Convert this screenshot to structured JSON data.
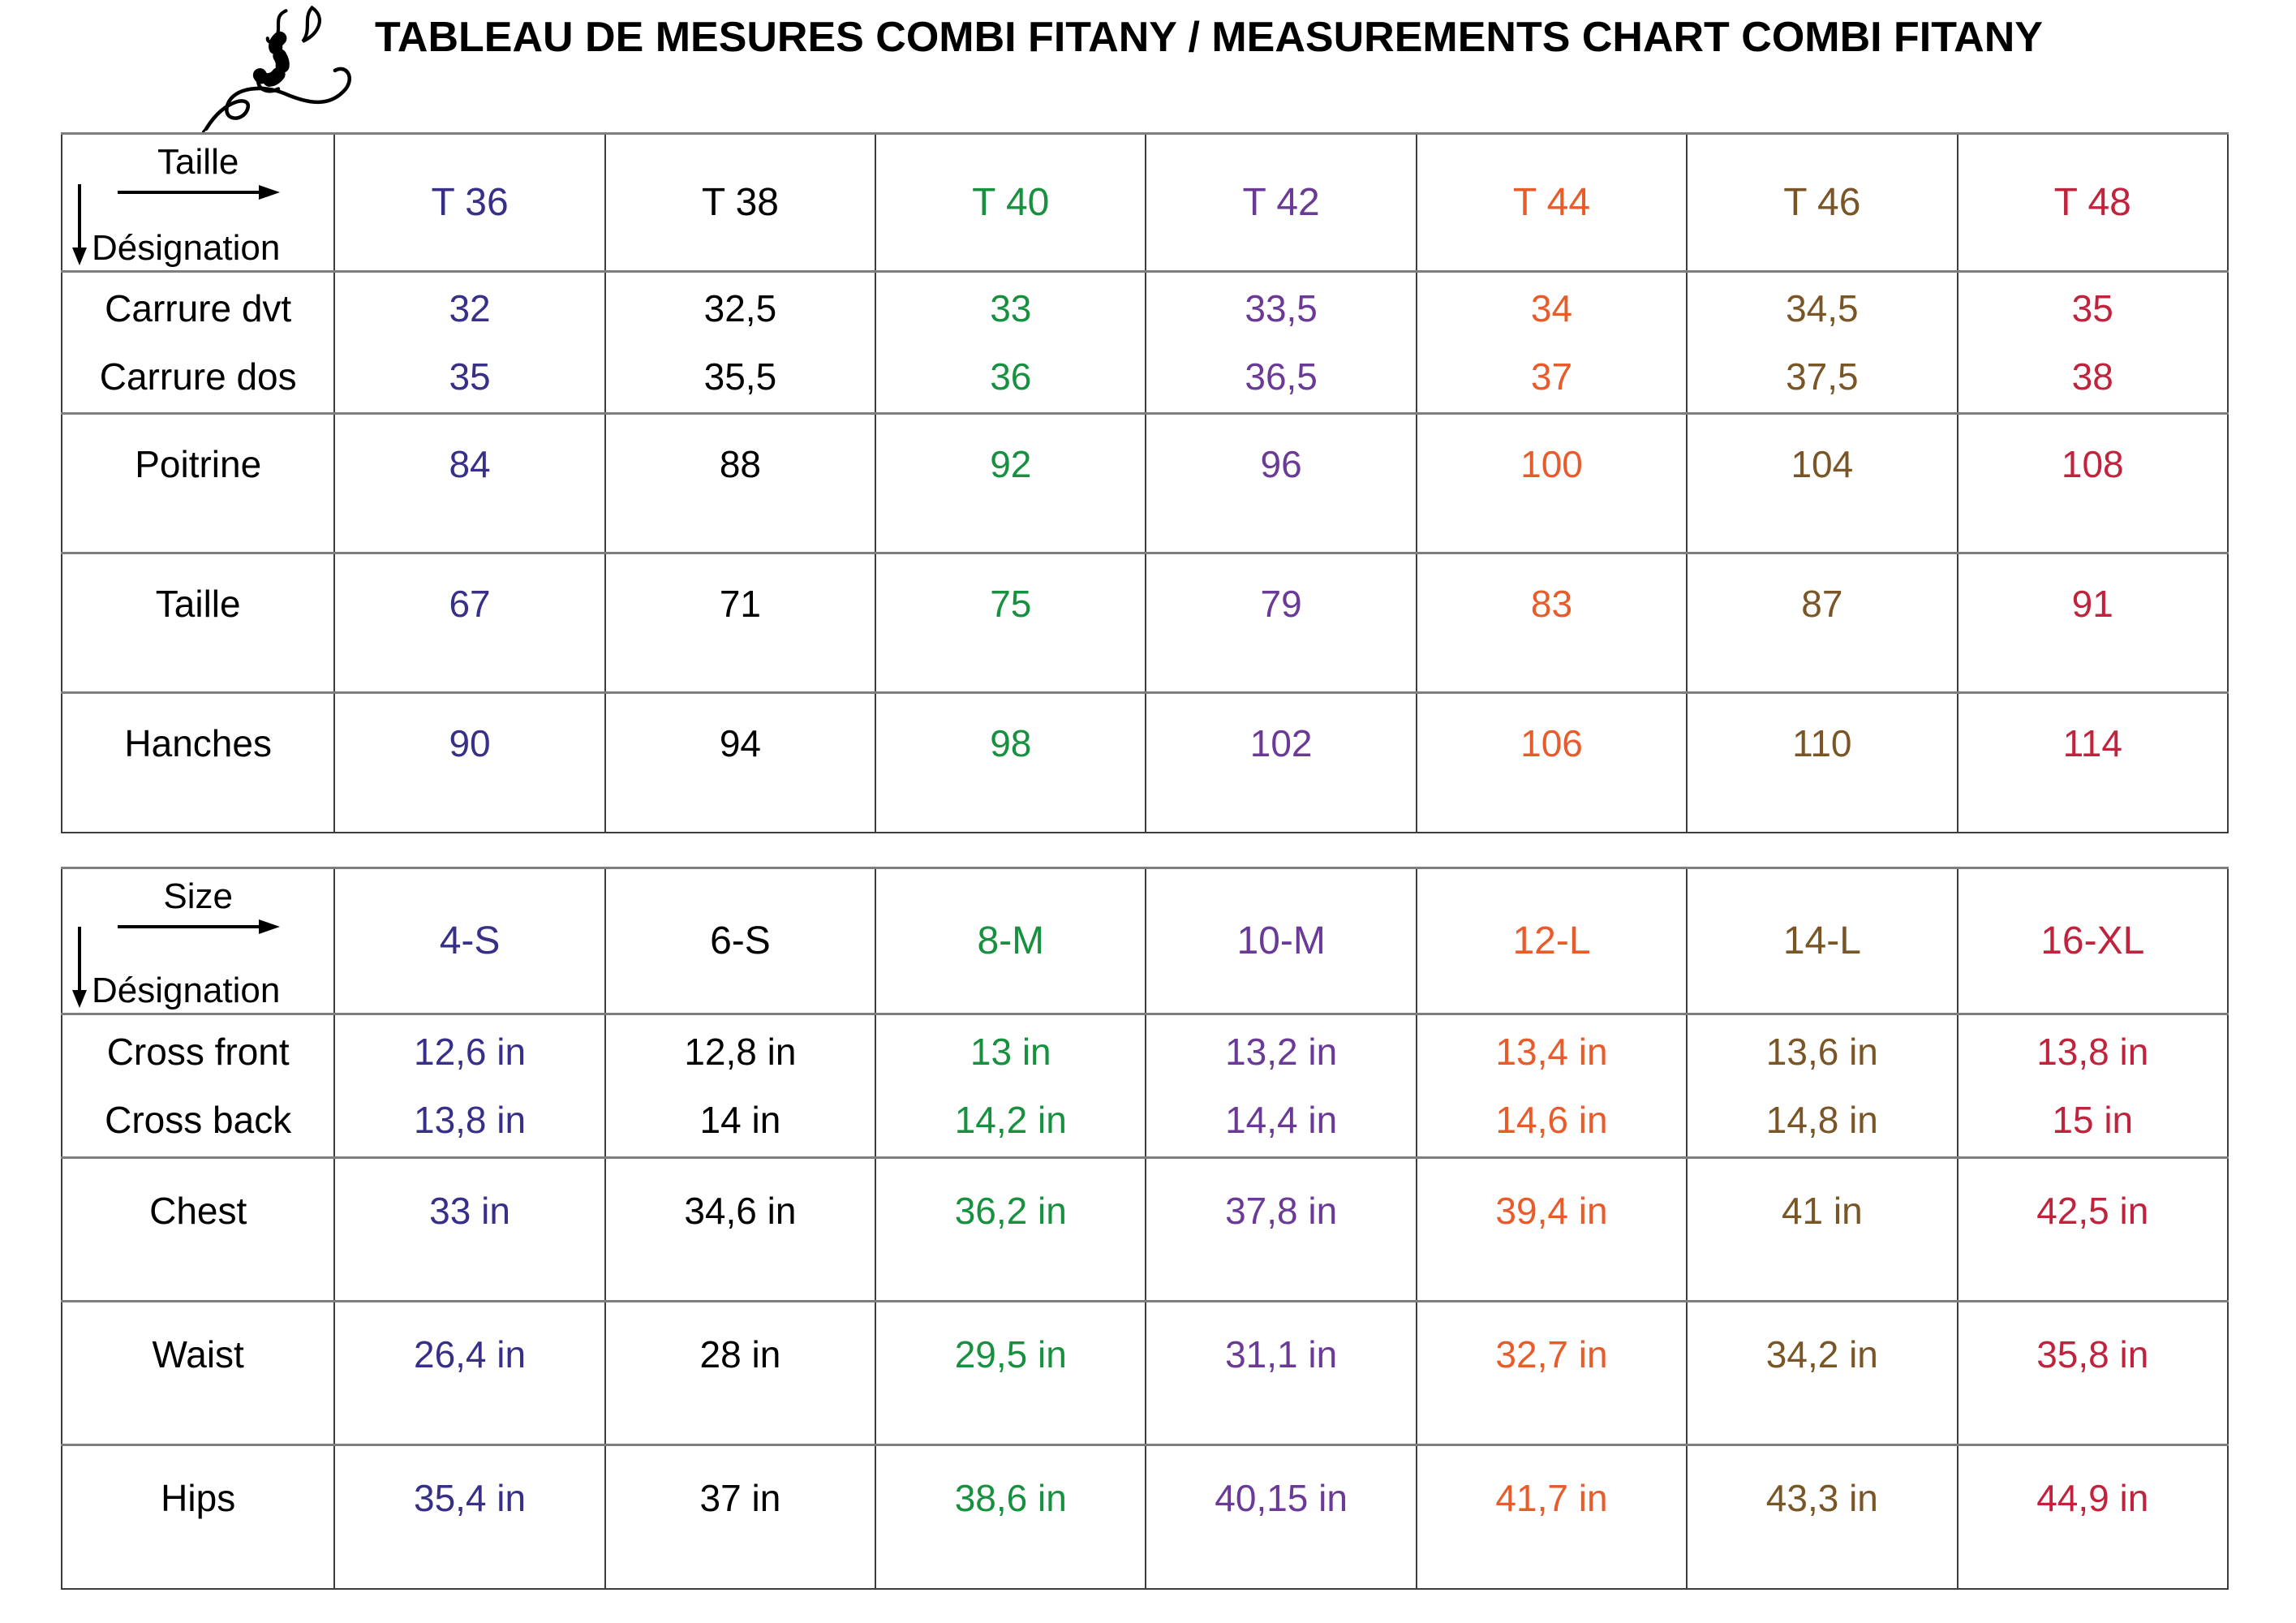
{
  "title": "TABLEAU DE MESURES COMBI FITANY / MEASUREMENTS CHART COMBI FITANY",
  "palette": {
    "navy": "#383088",
    "black": "#000000",
    "green": "#17913F",
    "purple": "#6B3A97",
    "orange": "#E85C2B",
    "brown": "#7A5526",
    "crimson": "#C0233C",
    "grid_line": "#7e7e7e",
    "grid_border": "#3d3d3d"
  },
  "tables": [
    {
      "name": "metric-measurements-table",
      "corner": {
        "column_axis": "Taille",
        "row_axis": "Désignation"
      },
      "columns": [
        {
          "label": "T 36",
          "color": "#383088"
        },
        {
          "label": "T 38",
          "color": "#000000"
        },
        {
          "label": "T 40",
          "color": "#17913F"
        },
        {
          "label": "T 42",
          "color": "#6B3A97"
        },
        {
          "label": "T 44",
          "color": "#E85C2B"
        },
        {
          "label": "T 46",
          "color": "#7A5526"
        },
        {
          "label": "T 48",
          "color": "#C0233C"
        }
      ],
      "rows": [
        {
          "labels": [
            "Carrure dvt",
            "Carrure dos"
          ],
          "values": [
            [
              "32",
              "35"
            ],
            [
              "32,5",
              "35,5"
            ],
            [
              "33",
              "36"
            ],
            [
              "33,5",
              "36,5"
            ],
            [
              "34",
              "37"
            ],
            [
              "34,5",
              "37,5"
            ],
            [
              "35",
              "38"
            ]
          ]
        },
        {
          "labels": [
            "Poitrine"
          ],
          "values": [
            [
              "84"
            ],
            [
              "88"
            ],
            [
              "92"
            ],
            [
              "96"
            ],
            [
              "100"
            ],
            [
              "104"
            ],
            [
              "108"
            ]
          ]
        },
        {
          "labels": [
            "Taille"
          ],
          "values": [
            [
              "67"
            ],
            [
              "71"
            ],
            [
              "75"
            ],
            [
              "79"
            ],
            [
              "83"
            ],
            [
              "87"
            ],
            [
              "91"
            ]
          ]
        },
        {
          "labels": [
            "Hanches"
          ],
          "values": [
            [
              "90"
            ],
            [
              "94"
            ],
            [
              "98"
            ],
            [
              "102"
            ],
            [
              "106"
            ],
            [
              "110"
            ],
            [
              "114"
            ]
          ]
        }
      ]
    },
    {
      "name": "imperial-measurements-table",
      "corner": {
        "column_axis": "Size",
        "row_axis": "Désignation"
      },
      "columns": [
        {
          "label": "4-S",
          "color": "#383088"
        },
        {
          "label": "6-S",
          "color": "#000000"
        },
        {
          "label": "8-M",
          "color": "#17913F"
        },
        {
          "label": "10-M",
          "color": "#6B3A97"
        },
        {
          "label": "12-L",
          "color": "#E85C2B"
        },
        {
          "label": "14-L",
          "color": "#7A5526"
        },
        {
          "label": "16-XL",
          "color": "#C0233C"
        }
      ],
      "rows": [
        {
          "labels": [
            "Cross front",
            "Cross back"
          ],
          "values": [
            [
              "12,6 in",
              "13,8 in"
            ],
            [
              "12,8 in",
              "14 in"
            ],
            [
              "13 in",
              "14,2 in"
            ],
            [
              "13,2 in",
              "14,4 in"
            ],
            [
              "13,4 in",
              "14,6 in"
            ],
            [
              "13,6 in",
              "14,8 in"
            ],
            [
              "13,8 in",
              "15 in"
            ]
          ]
        },
        {
          "labels": [
            "Chest"
          ],
          "values": [
            [
              "33 in"
            ],
            [
              "34,6 in"
            ],
            [
              "36,2 in"
            ],
            [
              "37,8 in"
            ],
            [
              "39,4 in"
            ],
            [
              "41 in"
            ],
            [
              "42,5 in"
            ]
          ]
        },
        {
          "labels": [
            "Waist"
          ],
          "values": [
            [
              "26,4 in"
            ],
            [
              "28 in"
            ],
            [
              "29,5 in"
            ],
            [
              "31,1 in"
            ],
            [
              "32,7 in"
            ],
            [
              "34,2 in"
            ],
            [
              "35,8 in"
            ]
          ]
        },
        {
          "labels": [
            "Hips"
          ],
          "values": [
            [
              "35,4 in"
            ],
            [
              "37 in"
            ],
            [
              "38,6 in"
            ],
            [
              "40,15 in"
            ],
            [
              "41,7 in"
            ],
            [
              "43,3 in"
            ],
            [
              "44,9 in"
            ]
          ]
        }
      ]
    }
  ]
}
